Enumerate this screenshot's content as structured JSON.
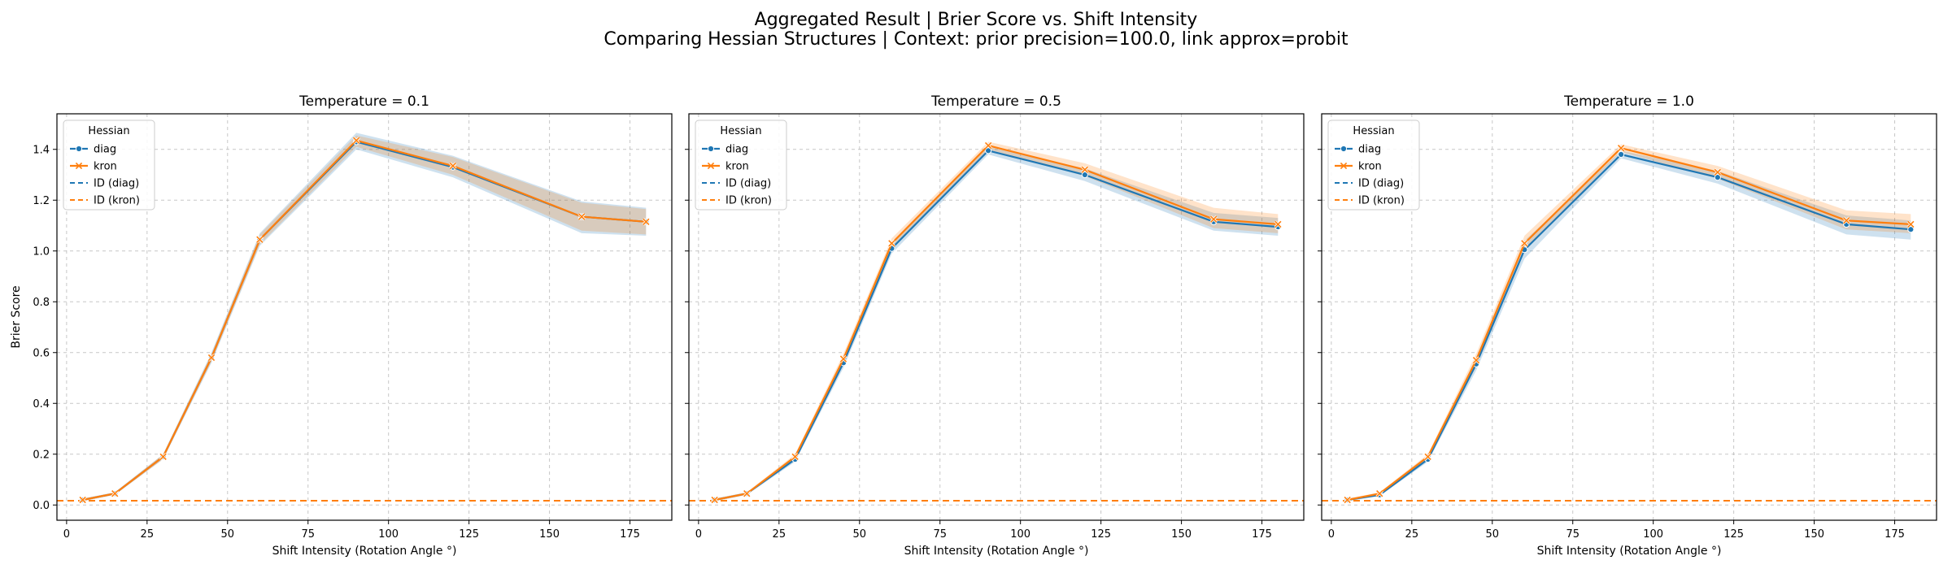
{
  "figure": {
    "title_line1": "Aggregated Result | Brier Score vs. Shift Intensity",
    "title_line2": "Comparing Hessian Structures | Context: prior precision=100.0, link approx=probit"
  },
  "colors": {
    "diag": "#1f77b4",
    "kron": "#ff7f0e"
  },
  "chart_data": [
    {
      "type": "line",
      "title": "Temperature = 0.1",
      "xlabel": "Shift Intensity (Rotation Angle °)",
      "ylabel": "Brier Score",
      "xlim": [
        -3,
        188
      ],
      "ylim": [
        -0.06,
        1.54
      ],
      "xticks": [
        0,
        25,
        50,
        75,
        100,
        125,
        150,
        175
      ],
      "yticks": [
        0.0,
        0.2,
        0.4,
        0.6,
        0.8,
        1.0,
        1.2,
        1.4
      ],
      "grid": true,
      "legend": {
        "title": "Hessian",
        "placement": "top-left",
        "entries": [
          "diag",
          "kron",
          "ID (diag)",
          "ID (kron)"
        ]
      },
      "x": [
        5,
        15,
        30,
        45,
        60,
        90,
        120,
        160,
        180
      ],
      "series": [
        {
          "name": "diag",
          "values": [
            0.02,
            0.045,
            0.19,
            0.58,
            1.045,
            1.43,
            1.33,
            1.135,
            1.115
          ],
          "band_lower": [
            0.015,
            0.04,
            0.18,
            0.56,
            1.02,
            1.4,
            1.29,
            1.07,
            1.06
          ],
          "band_upper": [
            0.025,
            0.05,
            0.2,
            0.6,
            1.07,
            1.465,
            1.375,
            1.195,
            1.17
          ]
        },
        {
          "name": "kron",
          "values": [
            0.02,
            0.045,
            0.19,
            0.58,
            1.045,
            1.435,
            1.335,
            1.135,
            1.115
          ],
          "band_lower": [
            0.015,
            0.04,
            0.18,
            0.565,
            1.025,
            1.41,
            1.3,
            1.08,
            1.065
          ],
          "band_upper": [
            0.025,
            0.05,
            0.2,
            0.595,
            1.065,
            1.455,
            1.37,
            1.19,
            1.165
          ]
        }
      ],
      "id_lines": [
        {
          "name": "ID (diag)",
          "value": 0.017
        },
        {
          "name": "ID (kron)",
          "value": 0.017
        }
      ]
    },
    {
      "type": "line",
      "title": "Temperature = 0.5",
      "xlabel": "Shift Intensity (Rotation Angle °)",
      "ylabel": "",
      "xlim": [
        -3,
        188
      ],
      "ylim": [
        -0.06,
        1.54
      ],
      "xticks": [
        0,
        25,
        50,
        75,
        100,
        125,
        150,
        175
      ],
      "yticks": [
        0.0,
        0.2,
        0.4,
        0.6,
        0.8,
        1.0,
        1.2,
        1.4
      ],
      "grid": true,
      "legend": {
        "title": "Hessian",
        "placement": "top-left",
        "entries": [
          "diag",
          "kron",
          "ID (diag)",
          "ID (kron)"
        ]
      },
      "x": [
        5,
        15,
        30,
        45,
        60,
        90,
        120,
        160,
        180
      ],
      "series": [
        {
          "name": "diag",
          "values": [
            0.02,
            0.045,
            0.18,
            0.56,
            1.01,
            1.395,
            1.3,
            1.115,
            1.095
          ],
          "band_lower": [
            0.015,
            0.04,
            0.17,
            0.54,
            0.99,
            1.38,
            1.275,
            1.08,
            1.06
          ],
          "band_upper": [
            0.025,
            0.05,
            0.19,
            0.58,
            1.03,
            1.41,
            1.325,
            1.15,
            1.13
          ]
        },
        {
          "name": "kron",
          "values": [
            0.02,
            0.045,
            0.19,
            0.575,
            1.03,
            1.415,
            1.32,
            1.125,
            1.105
          ],
          "band_lower": [
            0.015,
            0.04,
            0.18,
            0.555,
            1.01,
            1.4,
            1.295,
            1.09,
            1.07
          ],
          "band_upper": [
            0.025,
            0.05,
            0.2,
            0.595,
            1.05,
            1.43,
            1.345,
            1.17,
            1.145
          ]
        }
      ],
      "id_lines": [
        {
          "name": "ID (diag)",
          "value": 0.017
        },
        {
          "name": "ID (kron)",
          "value": 0.017
        }
      ]
    },
    {
      "type": "line",
      "title": "Temperature = 1.0",
      "xlabel": "Shift Intensity (Rotation Angle °)",
      "ylabel": "",
      "xlim": [
        -3,
        188
      ],
      "ylim": [
        -0.06,
        1.54
      ],
      "xticks": [
        0,
        25,
        50,
        75,
        100,
        125,
        150,
        175
      ],
      "yticks": [
        0.0,
        0.2,
        0.4,
        0.6,
        0.8,
        1.0,
        1.2,
        1.4
      ],
      "grid": true,
      "legend": {
        "title": "Hessian",
        "placement": "top-left",
        "entries": [
          "diag",
          "kron",
          "ID (diag)",
          "ID (kron)"
        ]
      },
      "x": [
        5,
        15,
        30,
        45,
        60,
        90,
        120,
        160,
        180
      ],
      "series": [
        {
          "name": "diag",
          "values": [
            0.02,
            0.04,
            0.18,
            0.555,
            1.005,
            1.38,
            1.29,
            1.105,
            1.085
          ],
          "band_lower": [
            0.015,
            0.035,
            0.17,
            0.53,
            0.97,
            1.365,
            1.265,
            1.065,
            1.045
          ],
          "band_upper": [
            0.025,
            0.045,
            0.19,
            0.58,
            1.04,
            1.395,
            1.315,
            1.14,
            1.12
          ]
        },
        {
          "name": "kron",
          "values": [
            0.02,
            0.045,
            0.19,
            0.57,
            1.03,
            1.405,
            1.31,
            1.12,
            1.105
          ],
          "band_lower": [
            0.015,
            0.04,
            0.18,
            0.545,
            1.0,
            1.39,
            1.285,
            1.085,
            1.07
          ],
          "band_upper": [
            0.025,
            0.05,
            0.2,
            0.595,
            1.06,
            1.42,
            1.335,
            1.16,
            1.145
          ]
        }
      ],
      "id_lines": [
        {
          "name": "ID (diag)",
          "value": 0.017
        },
        {
          "name": "ID (kron)",
          "value": 0.017
        }
      ]
    }
  ]
}
